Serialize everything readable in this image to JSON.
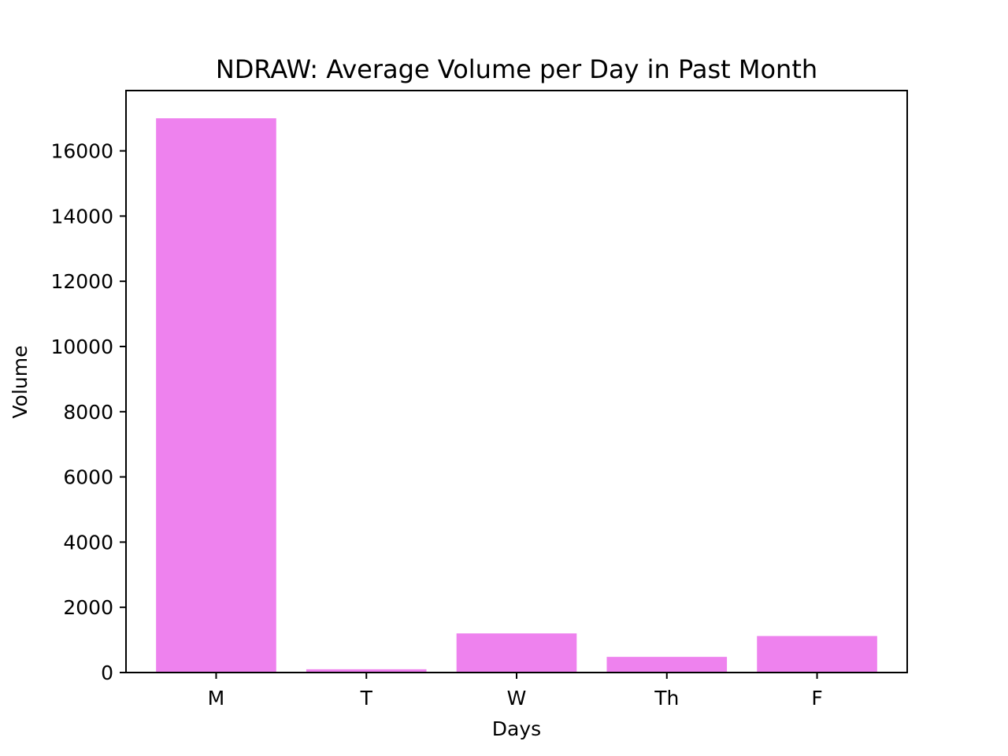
{
  "chart_data": {
    "type": "bar",
    "title": "NDRAW: Average Volume per Day in Past Month",
    "xlabel": "Days",
    "ylabel": "Volume",
    "categories": [
      "M",
      "T",
      "W",
      "Th",
      "F"
    ],
    "values": [
      17000,
      100,
      1200,
      480,
      1120
    ],
    "ylim": [
      0,
      17850
    ],
    "yticks": [
      0,
      2000,
      4000,
      6000,
      8000,
      10000,
      12000,
      14000,
      16000
    ],
    "bar_color": "#ee82ee",
    "grid": false
  }
}
